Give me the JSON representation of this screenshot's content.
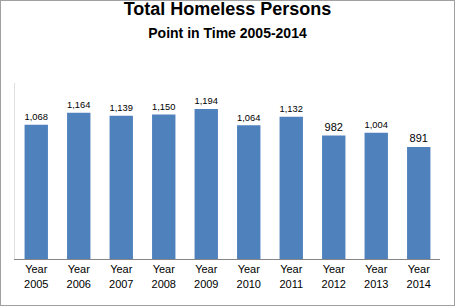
{
  "chart_data": {
    "type": "bar",
    "title": "Total Homeless Persons",
    "subtitle": "Point in Time 2005-2014",
    "categories": [
      "Year 2005",
      "Year 2006",
      "Year 2007",
      "Year 2008",
      "Year 2009",
      "Year 2010",
      "Year 2011",
      "Year 2012",
      "Year 2013",
      "Year 2014"
    ],
    "values": [
      1068,
      1164,
      1139,
      1150,
      1194,
      1064,
      1132,
      982,
      1004,
      891
    ],
    "value_labels": [
      "1,068",
      "1,164",
      "1,139",
      "1,150",
      "1,194",
      "1,064",
      "1,132",
      "982",
      "1,004",
      "891"
    ],
    "color": "#4f81bd",
    "ylim": [
      0,
      1400
    ],
    "grid": false,
    "data_labels": true,
    "tick_labels": "x"
  }
}
